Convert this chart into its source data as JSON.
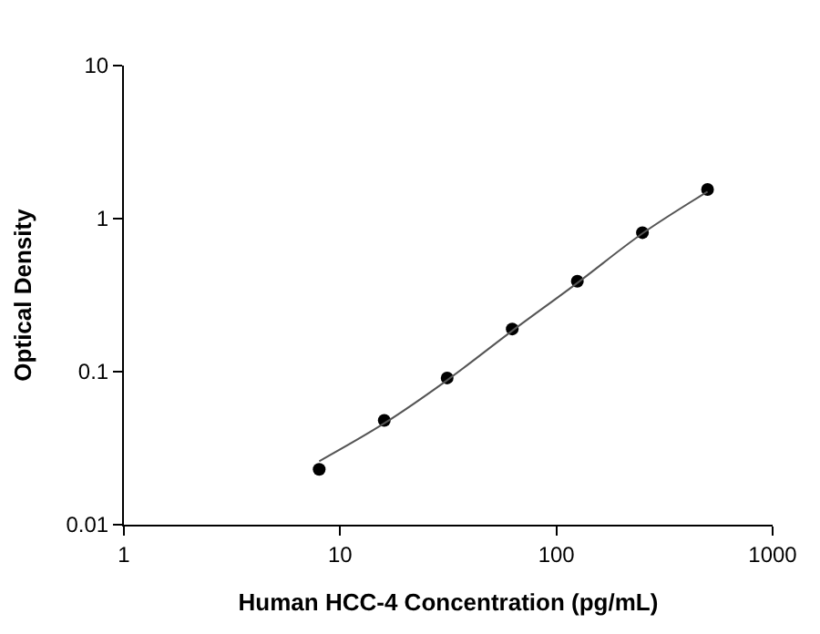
{
  "chart_data": {
    "type": "scatter",
    "xlabel": "Human HCC-4 Concentration (pg/mL)",
    "ylabel": "Optical Density",
    "log": "xy",
    "xlim": [
      1,
      1000
    ],
    "ylim": [
      0.01,
      10
    ],
    "xticks": [
      1,
      10,
      100,
      1000
    ],
    "yticks": [
      0.01,
      0.1,
      1,
      10
    ],
    "series": [
      {
        "marker": "circle",
        "color": "#000000",
        "x": [
          8,
          16,
          31.25,
          62.5,
          125,
          250,
          500
        ],
        "values": [
          0.023,
          0.048,
          0.091,
          0.19,
          0.39,
          0.81,
          1.55
        ]
      },
      {
        "type": "line",
        "marker": "none",
        "color": "#555555",
        "x": [
          8,
          16,
          31.25,
          62.5,
          125,
          250,
          500
        ],
        "values": [
          0.026,
          0.046,
          0.088,
          0.185,
          0.38,
          0.8,
          1.5
        ]
      }
    ]
  }
}
